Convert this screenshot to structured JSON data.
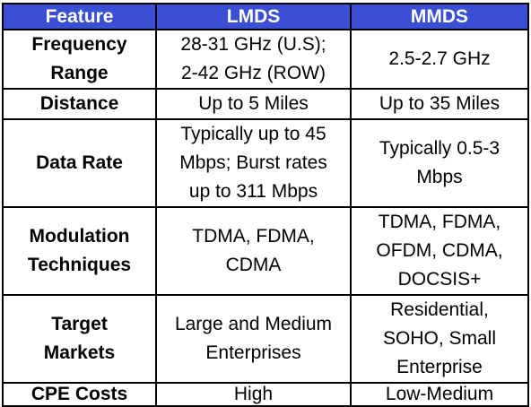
{
  "table": {
    "headers": [
      "Feature",
      "LMDS",
      "MMDS"
    ],
    "rows": [
      {
        "feature": [
          "Frequency",
          "Range"
        ],
        "lmds": [
          "28-31 GHz (U.S);",
          "2-42 GHz (ROW)"
        ],
        "mmds": [
          "2.5-2.7 GHz"
        ]
      },
      {
        "feature": [
          "Distance"
        ],
        "lmds": [
          "Up to 5 Miles"
        ],
        "mmds": [
          "Up to 35 Miles"
        ]
      },
      {
        "feature": [
          "Data Rate"
        ],
        "lmds": [
          "Typically up to 45",
          "Mbps; Burst rates",
          "up to 311 Mbps"
        ],
        "mmds": [
          "Typically 0.5-3",
          "Mbps"
        ]
      },
      {
        "feature": [
          "Modulation",
          "Techniques"
        ],
        "lmds": [
          "TDMA, FDMA,",
          "CDMA"
        ],
        "mmds": [
          "TDMA, FDMA,",
          "OFDM, CDMA,",
          "DOCSIS+"
        ]
      },
      {
        "feature": [
          "Target",
          "Markets"
        ],
        "lmds": [
          "Large and Medium",
          "Enterprises"
        ],
        "mmds": [
          "Residential,",
          "SOHO, Small",
          "Enterprise"
        ]
      },
      {
        "feature": [
          "CPE Costs"
        ],
        "lmds": [
          "High"
        ],
        "mmds": [
          "Low-Medium"
        ]
      }
    ]
  }
}
